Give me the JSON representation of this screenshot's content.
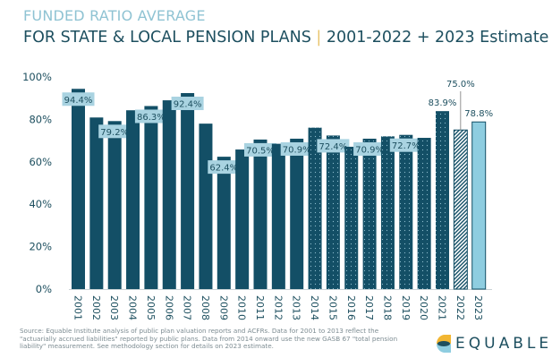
{
  "title": "FUNDED RATIO AVERAGE",
  "subtitle_main": "FOR STATE & LOCAL PENSION PLANS",
  "subtitle_sep": "|",
  "subtitle_range": "2001-2022 + 2023 Estimate",
  "source": "Source: Equable Institute analysis of public plan valuation reports and ACFRs. Data for 2001 to 2013 reflect the \"actuarially accrued liabilities\" reported by public plans. Data from 2014 onward use the new GASB 67 \"total pension liability\" measurement. See methodology section for details on 2023 estimate.",
  "logo_text": "EQUABLE",
  "colors": {
    "bar": "#134f66",
    "label_box": "#a9d3e1",
    "estimate": "#8ecde0",
    "axis_text": "#1d4f5f"
  },
  "chart_data": {
    "type": "bar",
    "title": "FUNDED RATIO AVERAGE FOR STATE & LOCAL PENSION PLANS | 2001-2022 + 2023 Estimate",
    "xlabel": "",
    "ylabel": "",
    "ylim": [
      0,
      100
    ],
    "yticks": [
      "0%",
      "20%",
      "40%",
      "60%",
      "80%",
      "100%"
    ],
    "categories": [
      "2001",
      "2002",
      "2003",
      "2004",
      "2005",
      "2006",
      "2007",
      "2008",
      "2009",
      "2010",
      "2011",
      "2012",
      "2013",
      "2014",
      "2015",
      "2016",
      "2017",
      "2018",
      "2019",
      "2020",
      "2021",
      "2022",
      "2023"
    ],
    "values": [
      94.4,
      80.9,
      79.2,
      84.3,
      86.3,
      89.0,
      92.4,
      78.0,
      62.4,
      65.8,
      70.5,
      68.5,
      70.9,
      76.1,
      72.4,
      67.1,
      70.9,
      72.0,
      72.7,
      71.3,
      83.9,
      75.0,
      78.8
    ],
    "styles": [
      "solid",
      "solid",
      "solid",
      "solid",
      "solid",
      "solid",
      "solid",
      "solid",
      "solid",
      "solid",
      "solid",
      "solid",
      "solid",
      "dotted",
      "dotted",
      "dotted",
      "dotted",
      "dotted",
      "dotted",
      "dotted",
      "dotted",
      "hatched",
      "estimate"
    ],
    "labels": {
      "2001": "94.4%",
      "2003": "79.2%",
      "2005": "86.3%",
      "2007": "92.4%",
      "2009": "62.4%",
      "2011": "70.5%",
      "2013": "70.9%",
      "2015": "72.4%",
      "2017": "70.9%",
      "2019": "72.7%",
      "2021": "83.9%",
      "2022": "75.0%",
      "2023": "78.8%"
    },
    "grid": false
  }
}
